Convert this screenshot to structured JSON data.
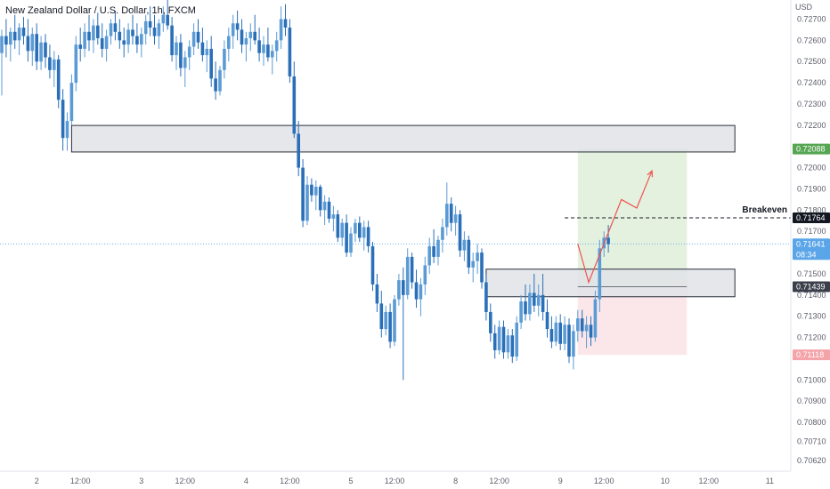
{
  "header": {
    "symbol": "New Zealand Dollar / U.S. Dollar, 1h, FXCM"
  },
  "colors": {
    "up": "#5b9bd5",
    "down": "#2a6fb8",
    "zone_fill": "#e1e3e8",
    "zone_border": "#2a2e39",
    "profit_fill": "#e4f1df",
    "loss_fill": "#fbe7e9",
    "arrow": "#ef5350",
    "tp_tag": "#56a552",
    "sl_tag": "#f4a3a9",
    "last_tag": "#5aa5e8",
    "entry_tag": "#3a3f4b",
    "be_tag": "#131722"
  },
  "chart_data": {
    "type": "candlestick",
    "title": "New Zealand Dollar / U.S. Dollar, 1h, FXCM",
    "currency": "USD",
    "y_range": [
      0.7057,
      0.7279
    ],
    "y_ticks": [
      "0.72700",
      "0.72600",
      "0.72500",
      "0.72400",
      "0.72300",
      "0.72200",
      "0.72000",
      "0.71900",
      "0.71800",
      "0.71700",
      "0.71500",
      "0.71400",
      "0.71300",
      "0.71200",
      "0.71000",
      "0.70900",
      "0.70800",
      "0.70710",
      "0.70620"
    ],
    "x_range": [
      0,
      168
    ],
    "x_ticks": [
      {
        "label": "2",
        "x": 8
      },
      {
        "label": "12:00",
        "x": 18
      },
      {
        "label": "3",
        "x": 32
      },
      {
        "label": "12:00",
        "x": 42
      },
      {
        "label": "4",
        "x": 56
      },
      {
        "label": "12:00",
        "x": 66
      },
      {
        "label": "5",
        "x": 80
      },
      {
        "label": "12:00",
        "x": 90
      },
      {
        "label": "8",
        "x": 104
      },
      {
        "label": "12:00",
        "x": 114
      },
      {
        "label": "9",
        "x": 128
      },
      {
        "label": "12:00",
        "x": 138
      },
      {
        "label": "10",
        "x": 152
      },
      {
        "label": "12:00",
        "x": 162
      },
      {
        "label": "11",
        "x": 176
      }
    ],
    "candles": [
      [
        0.7254,
        0.7265,
        0.7234,
        0.7262
      ],
      [
        0.7262,
        0.727,
        0.7252,
        0.7258
      ],
      [
        0.7258,
        0.7266,
        0.725,
        0.7264
      ],
      [
        0.7264,
        0.7272,
        0.7256,
        0.726
      ],
      [
        0.726,
        0.7268,
        0.7253,
        0.7266
      ],
      [
        0.7266,
        0.7271,
        0.7258,
        0.7262
      ],
      [
        0.7262,
        0.727,
        0.725,
        0.7255
      ],
      [
        0.7255,
        0.7266,
        0.7248,
        0.7263
      ],
      [
        0.7263,
        0.7268,
        0.7246,
        0.725
      ],
      [
        0.725,
        0.7262,
        0.7246,
        0.7259
      ],
      [
        0.7259,
        0.7263,
        0.7247,
        0.7252
      ],
      [
        0.7252,
        0.7258,
        0.7242,
        0.7246
      ],
      [
        0.7246,
        0.7255,
        0.7238,
        0.7251
      ],
      [
        0.7251,
        0.7253,
        0.7228,
        0.7232
      ],
      [
        0.7232,
        0.7237,
        0.7208,
        0.7214
      ],
      [
        0.7214,
        0.7226,
        0.7208,
        0.7222
      ],
      [
        0.7222,
        0.7244,
        0.722,
        0.724
      ],
      [
        0.724,
        0.7262,
        0.7236,
        0.7258
      ],
      [
        0.7258,
        0.7266,
        0.725,
        0.7256
      ],
      [
        0.7256,
        0.7268,
        0.7252,
        0.7264
      ],
      [
        0.7264,
        0.7272,
        0.7255,
        0.726
      ],
      [
        0.726,
        0.727,
        0.7254,
        0.7267
      ],
      [
        0.7267,
        0.7273,
        0.7258,
        0.7261
      ],
      [
        0.7261,
        0.7268,
        0.7252,
        0.7256
      ],
      [
        0.7256,
        0.7265,
        0.725,
        0.7262
      ],
      [
        0.7262,
        0.727,
        0.7258,
        0.7268
      ],
      [
        0.7268,
        0.7274,
        0.726,
        0.7264
      ],
      [
        0.7264,
        0.727,
        0.7256,
        0.726
      ],
      [
        0.726,
        0.7266,
        0.7252,
        0.7258
      ],
      [
        0.7258,
        0.7268,
        0.7254,
        0.7265
      ],
      [
        0.7265,
        0.7272,
        0.7258,
        0.7262
      ],
      [
        0.7262,
        0.7268,
        0.7254,
        0.7258
      ],
      [
        0.7258,
        0.7266,
        0.7252,
        0.7263
      ],
      [
        0.7263,
        0.7272,
        0.7258,
        0.7269
      ],
      [
        0.7269,
        0.7276,
        0.7262,
        0.7266
      ],
      [
        0.7266,
        0.7272,
        0.7258,
        0.7262
      ],
      [
        0.7262,
        0.727,
        0.7256,
        0.7268
      ],
      [
        0.7268,
        0.7276,
        0.7264,
        0.7272
      ],
      [
        0.7272,
        0.7279,
        0.7265,
        0.7267
      ],
      [
        0.7267,
        0.7271,
        0.725,
        0.7253
      ],
      [
        0.7253,
        0.7262,
        0.7246,
        0.7259
      ],
      [
        0.7259,
        0.7263,
        0.7243,
        0.7247
      ],
      [
        0.7247,
        0.7255,
        0.7238,
        0.7252
      ],
      [
        0.7252,
        0.726,
        0.7246,
        0.7257
      ],
      [
        0.7257,
        0.7268,
        0.7253,
        0.7264
      ],
      [
        0.7264,
        0.727,
        0.7256,
        0.7259
      ],
      [
        0.7259,
        0.7266,
        0.725,
        0.7253
      ],
      [
        0.7253,
        0.726,
        0.7245,
        0.7256
      ],
      [
        0.7256,
        0.7262,
        0.7238,
        0.7242
      ],
      [
        0.7242,
        0.725,
        0.7232,
        0.7236
      ],
      [
        0.7236,
        0.7248,
        0.7234,
        0.7246
      ],
      [
        0.7246,
        0.726,
        0.7242,
        0.7256
      ],
      [
        0.7256,
        0.7266,
        0.725,
        0.7262
      ],
      [
        0.7262,
        0.7272,
        0.7256,
        0.7268
      ],
      [
        0.7268,
        0.7274,
        0.726,
        0.7265
      ],
      [
        0.7265,
        0.727,
        0.7254,
        0.7258
      ],
      [
        0.7258,
        0.7264,
        0.725,
        0.7261
      ],
      [
        0.7261,
        0.7268,
        0.7255,
        0.7264
      ],
      [
        0.7264,
        0.7272,
        0.7258,
        0.726
      ],
      [
        0.726,
        0.7266,
        0.725,
        0.7254
      ],
      [
        0.7254,
        0.7262,
        0.7248,
        0.7258
      ],
      [
        0.7258,
        0.7266,
        0.725,
        0.7252
      ],
      [
        0.7252,
        0.7258,
        0.7244,
        0.7255
      ],
      [
        0.7255,
        0.7264,
        0.725,
        0.726
      ],
      [
        0.726,
        0.7276,
        0.7256,
        0.727
      ],
      [
        0.727,
        0.7277,
        0.7262,
        0.7266
      ],
      [
        0.7266,
        0.727,
        0.724,
        0.7243
      ],
      [
        0.7243,
        0.725,
        0.7214,
        0.7216
      ],
      [
        0.7216,
        0.7222,
        0.7196,
        0.72
      ],
      [
        0.72,
        0.7204,
        0.7172,
        0.7175
      ],
      [
        0.7175,
        0.7196,
        0.7173,
        0.7192
      ],
      [
        0.7192,
        0.7195,
        0.7184,
        0.7187
      ],
      [
        0.7187,
        0.7194,
        0.718,
        0.7191
      ],
      [
        0.7191,
        0.7192,
        0.7177,
        0.718
      ],
      [
        0.718,
        0.7187,
        0.7173,
        0.7184
      ],
      [
        0.7184,
        0.7186,
        0.7174,
        0.7176
      ],
      [
        0.7176,
        0.7182,
        0.717,
        0.7178
      ],
      [
        0.7178,
        0.718,
        0.7165,
        0.7167
      ],
      [
        0.7167,
        0.7176,
        0.7163,
        0.7174
      ],
      [
        0.7174,
        0.7178,
        0.7158,
        0.716
      ],
      [
        0.716,
        0.7172,
        0.7158,
        0.7169
      ],
      [
        0.7169,
        0.7176,
        0.7165,
        0.7174
      ],
      [
        0.7174,
        0.7177,
        0.7165,
        0.7167
      ],
      [
        0.7167,
        0.7175,
        0.7161,
        0.7172
      ],
      [
        0.7172,
        0.7175,
        0.716,
        0.7163
      ],
      [
        0.7163,
        0.7165,
        0.7142,
        0.7145
      ],
      [
        0.7145,
        0.715,
        0.7132,
        0.7136
      ],
      [
        0.7136,
        0.7142,
        0.712,
        0.7124
      ],
      [
        0.7124,
        0.7135,
        0.7121,
        0.7132
      ],
      [
        0.7132,
        0.7136,
        0.7115,
        0.7118
      ],
      [
        0.7118,
        0.714,
        0.7116,
        0.7138
      ],
      [
        0.7138,
        0.715,
        0.7135,
        0.7147
      ],
      [
        0.7147,
        0.7153,
        0.71,
        0.714
      ],
      [
        0.714,
        0.7162,
        0.7138,
        0.7158
      ],
      [
        0.7158,
        0.716,
        0.7143,
        0.7146
      ],
      [
        0.7146,
        0.7152,
        0.7134,
        0.7138
      ],
      [
        0.7138,
        0.7148,
        0.713,
        0.7145
      ],
      [
        0.7145,
        0.7158,
        0.714,
        0.7154
      ],
      [
        0.7154,
        0.7167,
        0.715,
        0.7163
      ],
      [
        0.7163,
        0.7171,
        0.7155,
        0.7158
      ],
      [
        0.7158,
        0.7168,
        0.7154,
        0.7166
      ],
      [
        0.7166,
        0.7176,
        0.716,
        0.7172
      ],
      [
        0.7172,
        0.7193,
        0.7168,
        0.7183
      ],
      [
        0.7183,
        0.7186,
        0.717,
        0.7174
      ],
      [
        0.7174,
        0.7182,
        0.7168,
        0.7178
      ],
      [
        0.7178,
        0.718,
        0.7158,
        0.7161
      ],
      [
        0.7161,
        0.717,
        0.7156,
        0.7166
      ],
      [
        0.7166,
        0.7168,
        0.715,
        0.7153
      ],
      [
        0.7153,
        0.716,
        0.7146,
        0.7156
      ],
      [
        0.7156,
        0.7164,
        0.715,
        0.716
      ],
      [
        0.716,
        0.7162,
        0.7143,
        0.7146
      ],
      [
        0.7146,
        0.715,
        0.7128,
        0.7132
      ],
      [
        0.7132,
        0.7136,
        0.7118,
        0.7122
      ],
      [
        0.7122,
        0.7126,
        0.711,
        0.7114
      ],
      [
        0.7114,
        0.7128,
        0.7112,
        0.7125
      ],
      [
        0.7125,
        0.7128,
        0.711,
        0.7113
      ],
      [
        0.7113,
        0.7124,
        0.711,
        0.7121
      ],
      [
        0.7121,
        0.7124,
        0.7108,
        0.7111
      ],
      [
        0.7111,
        0.713,
        0.7109,
        0.7127
      ],
      [
        0.7127,
        0.714,
        0.7124,
        0.7137
      ],
      [
        0.7137,
        0.7145,
        0.7128,
        0.7131
      ],
      [
        0.7131,
        0.7145,
        0.7128,
        0.7141
      ],
      [
        0.7141,
        0.715,
        0.7132,
        0.7135
      ],
      [
        0.7135,
        0.7145,
        0.713,
        0.714
      ],
      [
        0.714,
        0.715,
        0.7128,
        0.7132
      ],
      [
        0.7132,
        0.7138,
        0.712,
        0.7124
      ],
      [
        0.7124,
        0.713,
        0.7115,
        0.7118
      ],
      [
        0.7118,
        0.713,
        0.7116,
        0.7127
      ],
      [
        0.7127,
        0.7131,
        0.7114,
        0.7117
      ],
      [
        0.7117,
        0.713,
        0.7114,
        0.7126
      ],
      [
        0.7126,
        0.7129,
        0.7108,
        0.7111
      ],
      [
        0.7111,
        0.7126,
        0.7105,
        0.7123
      ],
      [
        0.7123,
        0.7133,
        0.7118,
        0.7129
      ],
      [
        0.7129,
        0.7133,
        0.712,
        0.7123
      ],
      [
        0.7123,
        0.713,
        0.7115,
        0.7126
      ],
      [
        0.7126,
        0.713,
        0.7116,
        0.712
      ],
      [
        0.712,
        0.7142,
        0.7118,
        0.7138
      ],
      [
        0.7138,
        0.7166,
        0.7132,
        0.7162
      ],
      [
        0.7162,
        0.717,
        0.7158,
        0.7167
      ],
      [
        0.7167,
        0.7173,
        0.716,
        0.7164
      ]
    ],
    "zones": [
      {
        "name": "resistance-zone",
        "x0": 16,
        "x1": 168,
        "y0": 0.72199,
        "y1": 0.72074
      },
      {
        "name": "support-zone",
        "x0": 111,
        "x1": 168,
        "y0": 0.71522,
        "y1": 0.71392
      }
    ],
    "position": {
      "type": "long",
      "x0": 132,
      "x1": 157,
      "entry": 0.71439,
      "target": 0.72088,
      "stop": 0.71118
    },
    "projection": [
      [
        132,
        0.71641
      ],
      [
        134.5,
        0.7146
      ],
      [
        142,
        0.7185
      ],
      [
        145.5,
        0.7181
      ],
      [
        149,
        0.71985
      ]
    ],
    "levels": [
      {
        "name": "breakeven",
        "label": "Breakeven",
        "price": 0.71764,
        "tag": "0.71764",
        "x0": 129
      },
      {
        "name": "target",
        "price": 0.72088,
        "tag": "0.72088"
      },
      {
        "name": "last-price",
        "price": 0.71641,
        "tag": "0.71641",
        "countdown": "08:34"
      },
      {
        "name": "entry",
        "price": 0.71439,
        "tag": "0.71439"
      },
      {
        "name": "stop",
        "price": 0.71118,
        "tag": "0.71118"
      }
    ]
  }
}
